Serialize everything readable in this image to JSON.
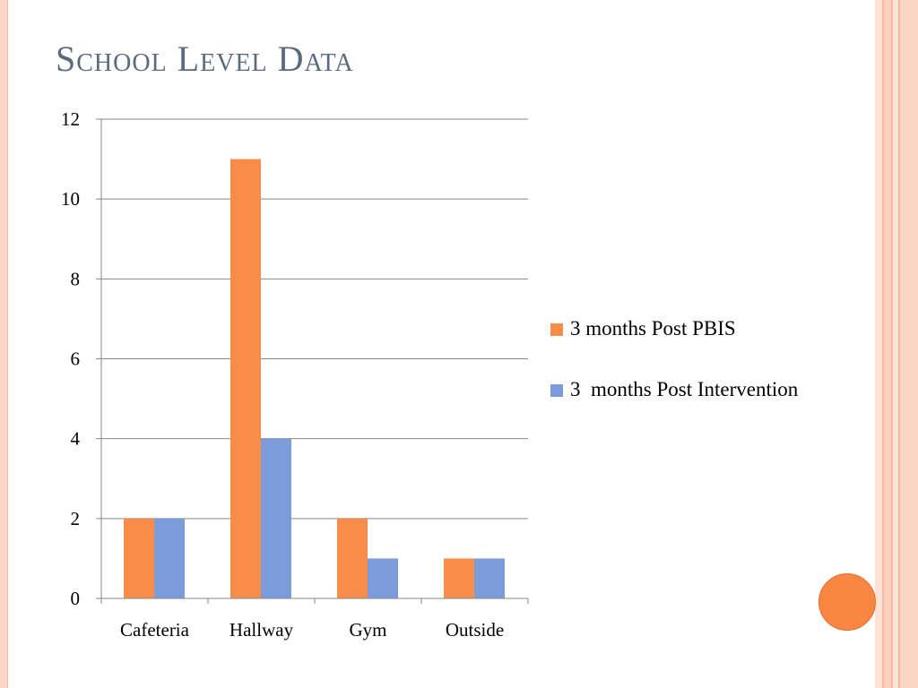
{
  "slide": {
    "title": "School Level Data"
  },
  "colors": {
    "accent": "#f98c48",
    "secondary": "#7c9bdb",
    "title": "#5b6a80",
    "border": "#fbd5c5"
  },
  "chart_data": {
    "type": "bar",
    "categories": [
      "Cafeteria",
      "Hallway",
      "Gym",
      "Outside"
    ],
    "series": [
      {
        "name": "3 months Post PBIS",
        "values": [
          2,
          11,
          2,
          1
        ],
        "color": "#f98c48"
      },
      {
        "name": "3  months Post Intervention",
        "values": [
          2,
          4,
          1,
          1
        ],
        "color": "#7c9bdb"
      }
    ],
    "ylim": [
      0,
      12
    ],
    "yticks": [
      0,
      2,
      4,
      6,
      8,
      10,
      12
    ],
    "grid": true,
    "legend": "right"
  }
}
